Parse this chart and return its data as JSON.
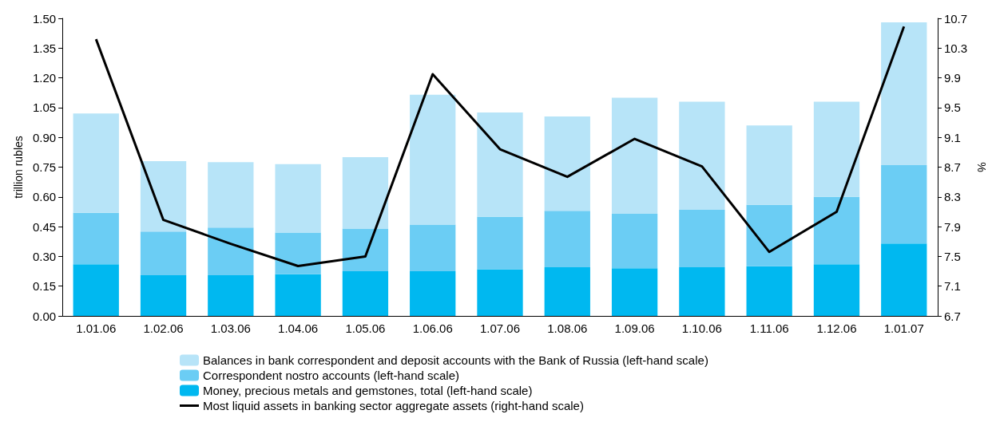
{
  "chart_data": {
    "type": "bar",
    "stacked": true,
    "ylabel": "trillion rubles",
    "y2label": "%",
    "categories": [
      "1.01.06",
      "1.02.06",
      "1.03.06",
      "1.04.06",
      "1.05.06",
      "1.06.06",
      "1.07.06",
      "1.08.06",
      "1.09.06",
      "1.10.06",
      "1.11.06",
      "1.12.06",
      "1.01.07"
    ],
    "series": [
      {
        "name": "Money, precious metals and gemstones, total (left-hand scale)",
        "color": "#00b8f0",
        "values": [
          0.26,
          0.205,
          0.205,
          0.21,
          0.225,
          0.225,
          0.235,
          0.245,
          0.24,
          0.245,
          0.25,
          0.26,
          0.365
        ]
      },
      {
        "name": "Correspondent nostro accounts (left-hand scale)",
        "color": "#6bcdf4",
        "values": [
          0.26,
          0.22,
          0.24,
          0.21,
          0.215,
          0.235,
          0.265,
          0.285,
          0.275,
          0.29,
          0.31,
          0.34,
          0.395
        ]
      },
      {
        "name": "Balances in bank correspondent and deposit accounts with the Bank of Russia (left-hand scale)",
        "color": "#b7e4f8",
        "values": [
          0.5,
          0.355,
          0.33,
          0.345,
          0.36,
          0.655,
          0.525,
          0.475,
          0.585,
          0.545,
          0.4,
          0.48,
          0.72
        ]
      },
      {
        "name": "Most liquid assets in banking sector aggregate assets (right-hand scale)",
        "type": "line",
        "axis": "y2",
        "color": "#000000",
        "values": [
          10.42,
          7.99,
          7.67,
          7.37,
          7.5,
          9.95,
          8.94,
          8.57,
          9.08,
          8.71,
          7.56,
          8.1,
          10.59
        ]
      }
    ],
    "ylim": [
      0,
      1.5
    ],
    "yticks": [
      {
        "value": 0,
        "label": "0.00"
      },
      {
        "value": 0.15,
        "label": "0.15"
      },
      {
        "value": 0.3,
        "label": "0.30"
      },
      {
        "value": 0.45,
        "label": "0.45"
      },
      {
        "value": 0.6,
        "label": "0.60"
      },
      {
        "value": 0.75,
        "label": "0.75"
      },
      {
        "value": 0.9,
        "label": "0.90"
      },
      {
        "value": 1.05,
        "label": "1.05"
      },
      {
        "value": 1.2,
        "label": "1.20"
      },
      {
        "value": 1.35,
        "label": "1.35"
      },
      {
        "value": 1.5,
        "label": "1.50"
      }
    ],
    "y2lim": [
      6.7,
      10.7
    ],
    "y2ticks": [
      6.7,
      7.1,
      7.5,
      7.9,
      8.3,
      8.7,
      9.1,
      9.5,
      9.9,
      10.3,
      10.7
    ],
    "legend": "bottom",
    "grid": false,
    "marker": "none",
    "line_style": "solid"
  }
}
